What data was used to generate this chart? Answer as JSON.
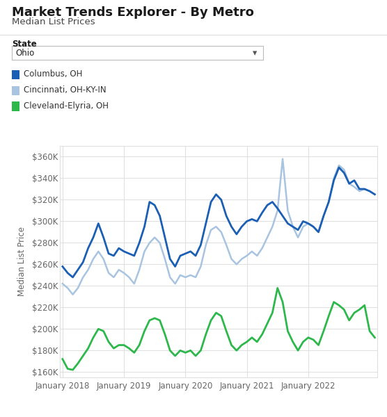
{
  "title": "Market Trends Explorer - By Metro",
  "subtitle": "Median List Prices",
  "state_label": "State",
  "state_value": "Ohio",
  "ylabel": "Median List Price",
  "legend": [
    {
      "label": "Columbus, OH",
      "color": "#1a5fb4"
    },
    {
      "label": "Cincinnati, OH-KY-IN",
      "color": "#a8c4e0"
    },
    {
      "label": "Cleveland-Elyria, OH",
      "color": "#2db84b"
    }
  ],
  "yticks": [
    160000,
    180000,
    200000,
    220000,
    240000,
    260000,
    280000,
    300000,
    320000,
    340000,
    360000
  ],
  "xtick_labels": [
    "January 2018",
    "January 2019",
    "January 2020",
    "January 2021",
    "January 2022"
  ],
  "xtick_positions": [
    0,
    12,
    24,
    36,
    48
  ],
  "background_color": "#ffffff",
  "grid_color": "#e0e0e0",
  "columbus": [
    258000,
    252000,
    248000,
    255000,
    262000,
    275000,
    285000,
    298000,
    285000,
    270000,
    268000,
    275000,
    272000,
    270000,
    268000,
    280000,
    295000,
    318000,
    315000,
    305000,
    285000,
    265000,
    258000,
    268000,
    270000,
    272000,
    268000,
    278000,
    298000,
    318000,
    325000,
    320000,
    305000,
    295000,
    288000,
    295000,
    300000,
    302000,
    300000,
    308000,
    315000,
    318000,
    312000,
    305000,
    298000,
    295000,
    292000,
    300000,
    298000,
    295000,
    290000,
    305000,
    318000,
    338000,
    350000,
    345000,
    335000,
    338000,
    330000,
    330000,
    328000,
    325000
  ],
  "cincinnati": [
    242000,
    238000,
    232000,
    238000,
    248000,
    255000,
    265000,
    272000,
    265000,
    252000,
    248000,
    255000,
    252000,
    248000,
    242000,
    255000,
    272000,
    280000,
    285000,
    280000,
    265000,
    248000,
    242000,
    250000,
    248000,
    250000,
    248000,
    258000,
    278000,
    292000,
    295000,
    290000,
    278000,
    265000,
    260000,
    265000,
    268000,
    272000,
    268000,
    275000,
    285000,
    295000,
    310000,
    358000,
    310000,
    295000,
    285000,
    295000,
    298000,
    295000,
    290000,
    305000,
    318000,
    340000,
    352000,
    348000,
    335000,
    332000,
    328000,
    330000,
    328000,
    325000
  ],
  "cleveland": [
    172000,
    163000,
    162000,
    168000,
    175000,
    182000,
    192000,
    200000,
    198000,
    188000,
    182000,
    185000,
    185000,
    182000,
    178000,
    185000,
    198000,
    208000,
    210000,
    208000,
    195000,
    180000,
    175000,
    180000,
    178000,
    180000,
    175000,
    180000,
    195000,
    208000,
    215000,
    212000,
    198000,
    185000,
    180000,
    185000,
    188000,
    192000,
    188000,
    195000,
    205000,
    215000,
    238000,
    225000,
    198000,
    188000,
    180000,
    188000,
    192000,
    190000,
    185000,
    198000,
    212000,
    225000,
    222000,
    218000,
    208000,
    215000,
    218000,
    222000,
    198000,
    192000
  ]
}
